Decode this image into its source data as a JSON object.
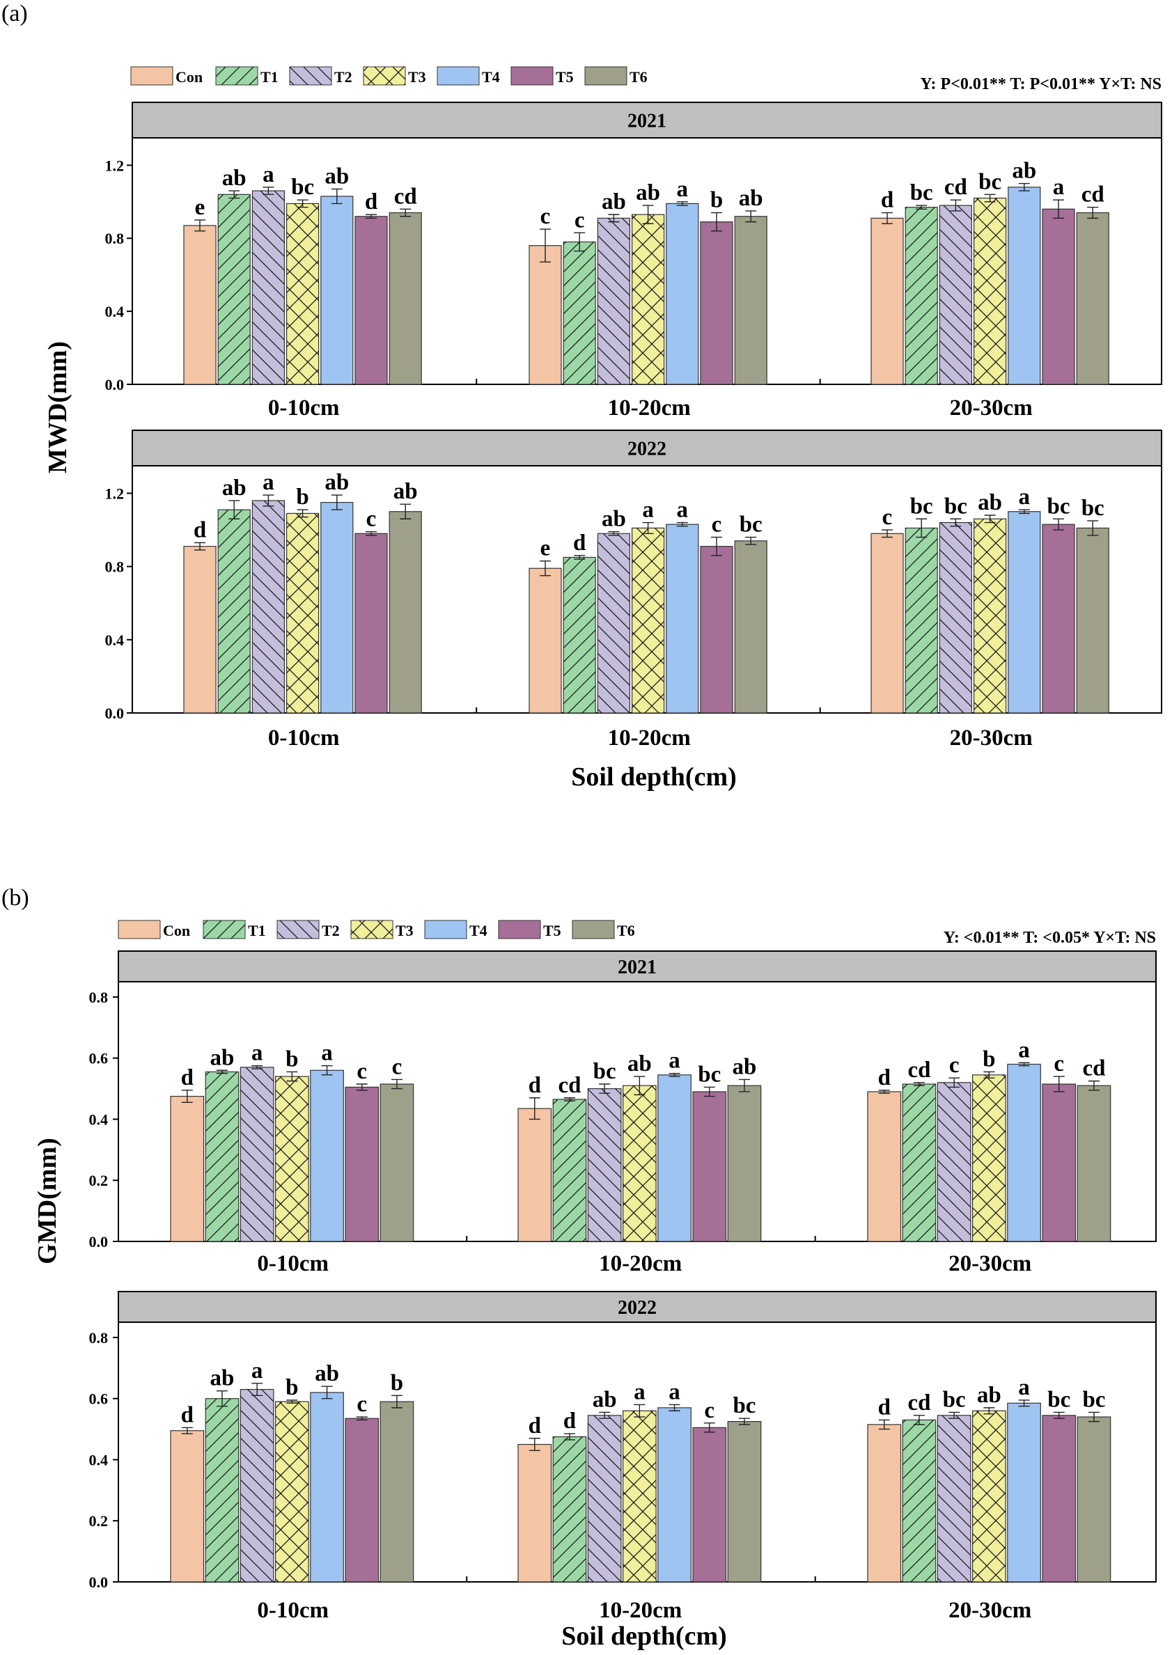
{
  "treatments": [
    {
      "name": "Con",
      "color": "#f3c5a4",
      "pattern": "none"
    },
    {
      "name": "T1",
      "color": "#9bd8a6",
      "pattern": "fwd"
    },
    {
      "name": "T2",
      "color": "#c4bedc",
      "pattern": "back"
    },
    {
      "name": "T3",
      "color": "#f1ee9c",
      "pattern": "cross"
    },
    {
      "name": "T4",
      "color": "#9ec4f2",
      "pattern": "none"
    },
    {
      "name": "T5",
      "color": "#a66f97",
      "pattern": "none"
    },
    {
      "name": "T6",
      "color": "#9ea08a",
      "pattern": "none"
    }
  ],
  "categories": [
    "0-10cm",
    "10-20cm",
    "20-30cm"
  ],
  "chart_data": [
    {
      "panel": "(a)",
      "type": "bar",
      "ylabel": "MWD(mm)",
      "xlabel": "Soil depth(cm)",
      "stats": "Y: P<0.01**   T: P<0.01**   Y×T: NS",
      "ylim": [
        0,
        1.35
      ],
      "yticks": [
        "0.0",
        "0.4",
        "0.8",
        "1.2"
      ],
      "facets": [
        {
          "year": "2021",
          "values": [
            [
              0.87,
              1.04,
              1.06,
              0.99,
              1.03,
              0.92,
              0.94
            ],
            [
              0.76,
              0.78,
              0.91,
              0.93,
              0.99,
              0.89,
              0.92
            ],
            [
              0.91,
              0.97,
              0.98,
              1.02,
              1.08,
              0.96,
              0.94
            ]
          ],
          "errors": [
            [
              0.03,
              0.02,
              0.02,
              0.02,
              0.04,
              0.01,
              0.02
            ],
            [
              0.09,
              0.05,
              0.02,
              0.05,
              0.01,
              0.05,
              0.03
            ],
            [
              0.03,
              0.01,
              0.03,
              0.02,
              0.02,
              0.05,
              0.03
            ]
          ],
          "letters": [
            [
              "e",
              "ab",
              "a",
              "bc",
              "ab",
              "d",
              "cd"
            ],
            [
              "c",
              "c",
              "ab",
              "ab",
              "a",
              "b",
              "ab"
            ],
            [
              "d",
              "bc",
              "cd",
              "bc",
              "ab",
              "a",
              "cd"
            ]
          ]
        },
        {
          "year": "2022",
          "values": [
            [
              0.91,
              1.11,
              1.16,
              1.09,
              1.15,
              0.98,
              1.1
            ],
            [
              0.79,
              0.85,
              0.98,
              1.01,
              1.03,
              0.91,
              0.94
            ],
            [
              0.98,
              1.01,
              1.04,
              1.06,
              1.1,
              1.03,
              1.01
            ]
          ],
          "errors": [
            [
              0.02,
              0.05,
              0.03,
              0.02,
              0.04,
              0.01,
              0.04
            ],
            [
              0.04,
              0.01,
              0.01,
              0.03,
              0.01,
              0.05,
              0.02
            ],
            [
              0.02,
              0.05,
              0.02,
              0.02,
              0.01,
              0.03,
              0.04
            ]
          ],
          "letters": [
            [
              "d",
              "ab",
              "a",
              "b",
              "ab",
              "c",
              "ab"
            ],
            [
              "e",
              "d",
              "ab",
              "a",
              "a",
              "c",
              "bc"
            ],
            [
              "c",
              "bc",
              "bc",
              "ab",
              "a",
              "bc",
              "bc"
            ]
          ]
        }
      ]
    },
    {
      "panel": "(b)",
      "type": "bar",
      "ylabel": "GMD(mm)",
      "xlabel": "Soil depth(cm)",
      "stats": "Y: <0.01**   T: <0.05*   Y×T: NS",
      "ylim": [
        0,
        0.85
      ],
      "yticks": [
        "0.0",
        "0.2",
        "0.4",
        "0.6",
        "0.8"
      ],
      "facets": [
        {
          "year": "2021",
          "values": [
            [
              0.475,
              0.555,
              0.57,
              0.54,
              0.56,
              0.505,
              0.515
            ],
            [
              0.435,
              0.465,
              0.5,
              0.51,
              0.545,
              0.49,
              0.51
            ],
            [
              0.49,
              0.515,
              0.52,
              0.545,
              0.58,
              0.515,
              0.51
            ]
          ],
          "errors": [
            [
              0.02,
              0.005,
              0.005,
              0.015,
              0.015,
              0.01,
              0.015
            ],
            [
              0.035,
              0.005,
              0.015,
              0.03,
              0.005,
              0.015,
              0.02
            ],
            [
              0.005,
              0.005,
              0.015,
              0.01,
              0.005,
              0.025,
              0.015
            ]
          ],
          "letters": [
            [
              "d",
              "ab",
              "a",
              "b",
              "a",
              "c",
              "c"
            ],
            [
              "d",
              "cd",
              "bc",
              "ab",
              "a",
              "bc",
              "ab"
            ],
            [
              "d",
              "cd",
              "c",
              "b",
              "a",
              "c",
              "cd"
            ]
          ]
        },
        {
          "year": "2022",
          "values": [
            [
              0.495,
              0.6,
              0.63,
              0.59,
              0.62,
              0.535,
              0.59
            ],
            [
              0.45,
              0.475,
              0.545,
              0.56,
              0.57,
              0.505,
              0.525
            ],
            [
              0.515,
              0.53,
              0.545,
              0.56,
              0.585,
              0.545,
              0.54
            ]
          ],
          "errors": [
            [
              0.01,
              0.025,
              0.02,
              0.005,
              0.02,
              0.005,
              0.02
            ],
            [
              0.02,
              0.01,
              0.01,
              0.02,
              0.01,
              0.015,
              0.01
            ],
            [
              0.015,
              0.015,
              0.01,
              0.01,
              0.01,
              0.01,
              0.015
            ]
          ],
          "letters": [
            [
              "d",
              "ab",
              "a",
              "b",
              "ab",
              "c",
              "b"
            ],
            [
              "d",
              "d",
              "ab",
              "a",
              "a",
              "c",
              "bc"
            ],
            [
              "d",
              "cd",
              "bc",
              "ab",
              "a",
              "bc",
              "bc"
            ]
          ]
        }
      ]
    }
  ]
}
